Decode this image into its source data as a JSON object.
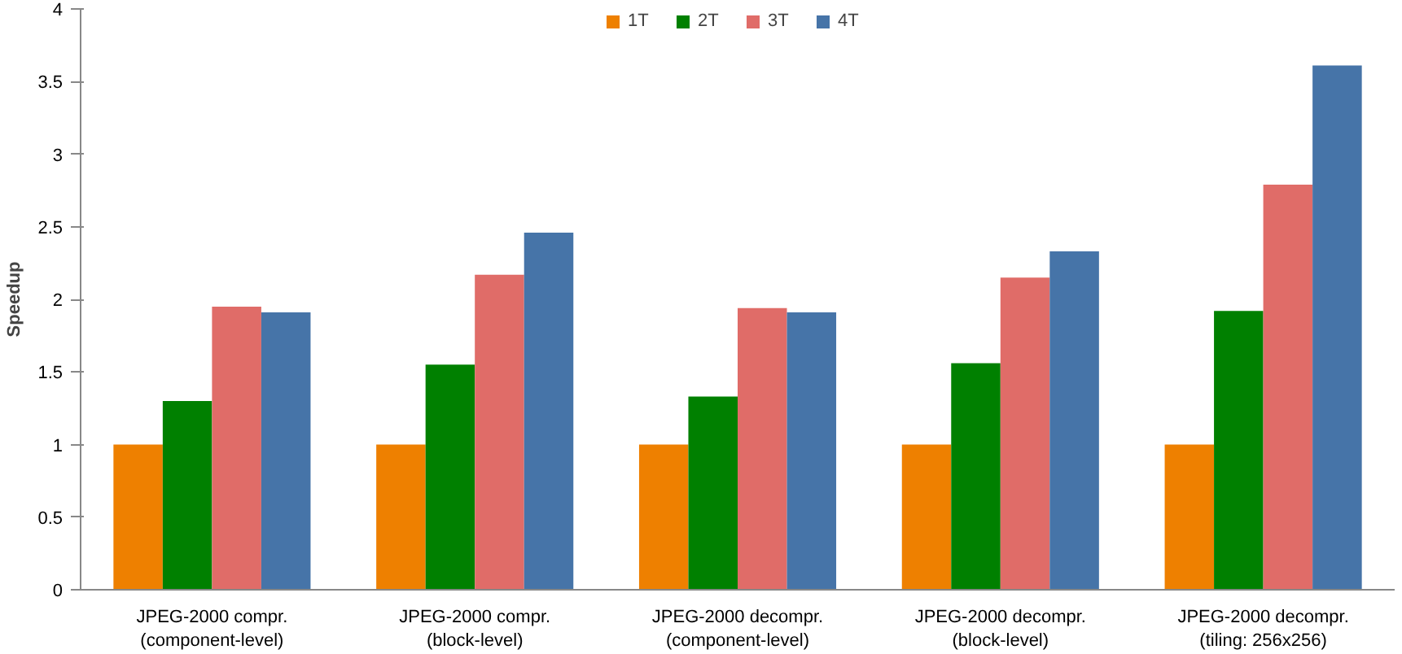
{
  "chart_data": {
    "type": "bar",
    "ylabel": "Speedup",
    "categories": [
      "JPEG-2000 compr.\n(component-level)",
      "JPEG-2000 compr.\n(block-level)",
      "JPEG-2000 decompr.\n(component-level)",
      "JPEG-2000 decompr.\n(block-level)",
      "JPEG-2000 decompr.\n(tiling: 256x256)"
    ],
    "series": [
      {
        "name": "1T",
        "color": "#ee8000",
        "values": [
          1.0,
          1.0,
          1.0,
          1.0,
          1.0
        ]
      },
      {
        "name": "2T",
        "color": "#008000",
        "values": [
          1.3,
          1.55,
          1.33,
          1.56,
          1.92
        ]
      },
      {
        "name": "3T",
        "color": "#e06c68",
        "values": [
          1.95,
          2.17,
          1.94,
          2.15,
          2.79
        ]
      },
      {
        "name": "4T",
        "color": "#4674a8",
        "values": [
          1.91,
          2.46,
          1.91,
          2.33,
          3.61
        ]
      }
    ],
    "ylim": [
      0,
      4
    ],
    "yticks": [
      0,
      0.5,
      1,
      1.5,
      2,
      2.5,
      3,
      3.5,
      4
    ],
    "grid": false,
    "legend": "top"
  }
}
